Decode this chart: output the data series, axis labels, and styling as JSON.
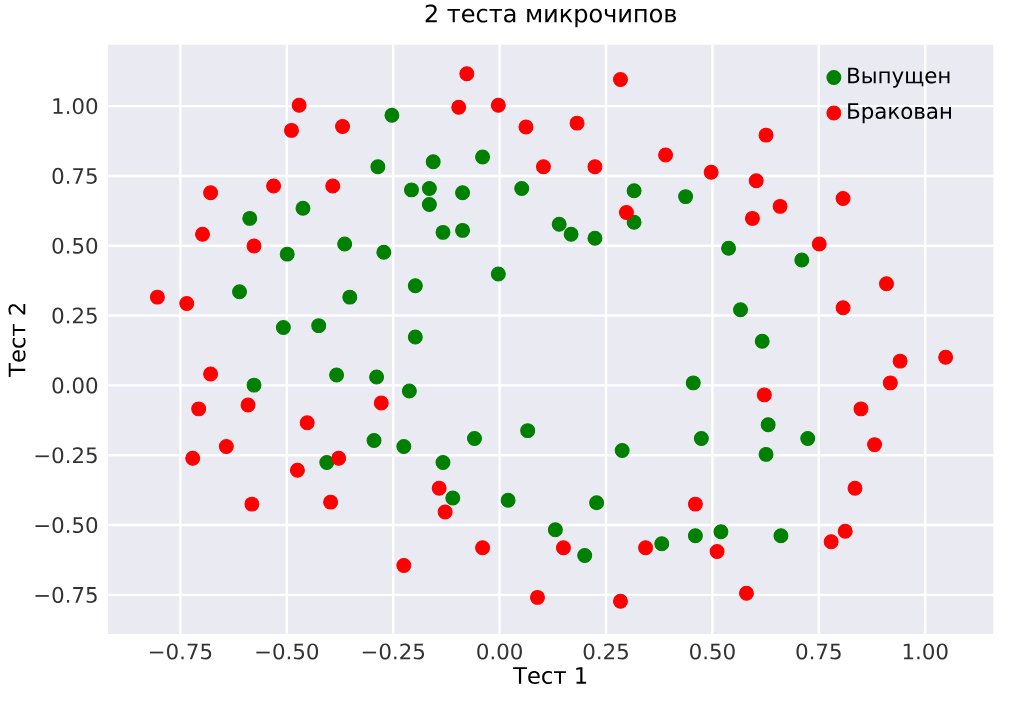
{
  "chart_data": {
    "type": "scatter",
    "title": "2 теста микрочипов",
    "xlabel": "Тест 1",
    "ylabel": "Тест 2",
    "xlim": [
      -0.92,
      1.16
    ],
    "ylim": [
      -0.89,
      1.22
    ],
    "xticks": [
      {
        "value": -0.75,
        "label": "−0.75"
      },
      {
        "value": -0.5,
        "label": "−0.50"
      },
      {
        "value": -0.25,
        "label": "−0.25"
      },
      {
        "value": 0,
        "label": "0.00"
      },
      {
        "value": 0.25,
        "label": "0.25"
      },
      {
        "value": 0.5,
        "label": "0.50"
      },
      {
        "value": 0.75,
        "label": "0.75"
      },
      {
        "value": 1,
        "label": "1.00"
      }
    ],
    "yticks": [
      {
        "value": -0.75,
        "label": "−0.75"
      },
      {
        "value": -0.5,
        "label": "−0.50"
      },
      {
        "value": -0.25,
        "label": "−0.25"
      },
      {
        "value": 0,
        "label": "0.00"
      },
      {
        "value": 0.25,
        "label": "0.25"
      },
      {
        "value": 0.5,
        "label": "0.50"
      },
      {
        "value": 0.75,
        "label": "0.75"
      },
      {
        "value": 1,
        "label": "1.00"
      }
    ],
    "grid": true,
    "legend": "top right",
    "marker": "circle",
    "series": [
      {
        "name": "Выпущен",
        "color": "#008000",
        "x": [
          -0.286,
          -0.462,
          -0.587,
          -0.499,
          -0.364,
          -0.272,
          -0.611,
          -0.352,
          -0.508,
          -0.425,
          -0.253,
          -0.156,
          -0.04,
          -0.207,
          -0.165,
          -0.165,
          -0.087,
          0.052,
          0.316,
          0.437,
          0.316,
          -0.133,
          -0.087,
          0.14,
          0.168,
          0.224,
          -0.198,
          -0.003,
          -0.198,
          0.538,
          0.71,
          0.566,
          0.617,
          -0.577,
          -0.383,
          -0.289,
          -0.295,
          -0.406,
          -0.212,
          -0.225,
          -0.059,
          0.066,
          0.288,
          -0.133,
          -0.11,
          0.02,
          0.228,
          0.131,
          0.2,
          0.381,
          0.455,
          0.631,
          0.474,
          0.724,
          0.626,
          0.46,
          0.52,
          0.661
        ],
        "values": [
          0.783,
          0.634,
          0.598,
          0.47,
          0.506,
          0.477,
          0.335,
          0.316,
          0.207,
          0.214,
          0.967,
          0.801,
          0.818,
          0.7,
          0.705,
          0.648,
          0.69,
          0.705,
          0.697,
          0.676,
          0.584,
          0.548,
          0.555,
          0.577,
          0.541,
          0.527,
          0.357,
          0.399,
          0.173,
          0.491,
          0.449,
          0.271,
          0.158,
          0.001,
          0.037,
          0.03,
          -0.197,
          -0.276,
          -0.02,
          -0.219,
          -0.19,
          -0.162,
          -0.233,
          -0.276,
          -0.403,
          -0.411,
          -0.42,
          -0.517,
          -0.609,
          -0.567,
          0.009,
          -0.141,
          -0.19,
          -0.19,
          -0.247,
          -0.538,
          -0.524,
          -0.538
        ]
      },
      {
        "name": "Бракован",
        "color": "#ff0000",
        "x": [
          -0.471,
          -0.489,
          -0.369,
          -0.679,
          -0.531,
          -0.392,
          -0.698,
          -0.577,
          -0.804,
          -0.735,
          -0.077,
          -0.096,
          -0.003,
          0.062,
          0.182,
          0.284,
          0.103,
          0.224,
          0.39,
          0.298,
          0.626,
          0.497,
          0.603,
          0.659,
          0.594,
          0.807,
          0.751,
          0.909,
          0.807,
          -0.679,
          -0.707,
          -0.591,
          -0.452,
          -0.642,
          -0.721,
          -0.475,
          -0.378,
          -0.582,
          -0.397,
          -0.278,
          -0.142,
          -0.128,
          -0.04,
          -0.225,
          0.15,
          0.343,
          0.089,
          0.284,
          0.941,
          1.048,
          0.622,
          0.918,
          0.849,
          0.881,
          0.835,
          0.46,
          0.812,
          0.779,
          0.511,
          0.58
        ],
        "values": [
          1.003,
          0.913,
          0.927,
          0.69,
          0.714,
          0.714,
          0.541,
          0.499,
          0.316,
          0.293,
          1.116,
          0.996,
          1.003,
          0.925,
          0.939,
          1.095,
          0.783,
          0.783,
          0.825,
          0.619,
          0.896,
          0.763,
          0.733,
          0.641,
          0.598,
          0.669,
          0.506,
          0.364,
          0.278,
          0.041,
          -0.084,
          -0.07,
          -0.134,
          -0.219,
          -0.261,
          -0.304,
          -0.261,
          -0.425,
          -0.418,
          -0.063,
          -0.368,
          -0.453,
          -0.581,
          -0.645,
          -0.581,
          -0.581,
          -0.759,
          -0.773,
          0.087,
          0.101,
          -0.034,
          0.009,
          -0.084,
          -0.212,
          -0.368,
          -0.425,
          -0.522,
          -0.56,
          -0.595,
          -0.744
        ]
      }
    ]
  }
}
